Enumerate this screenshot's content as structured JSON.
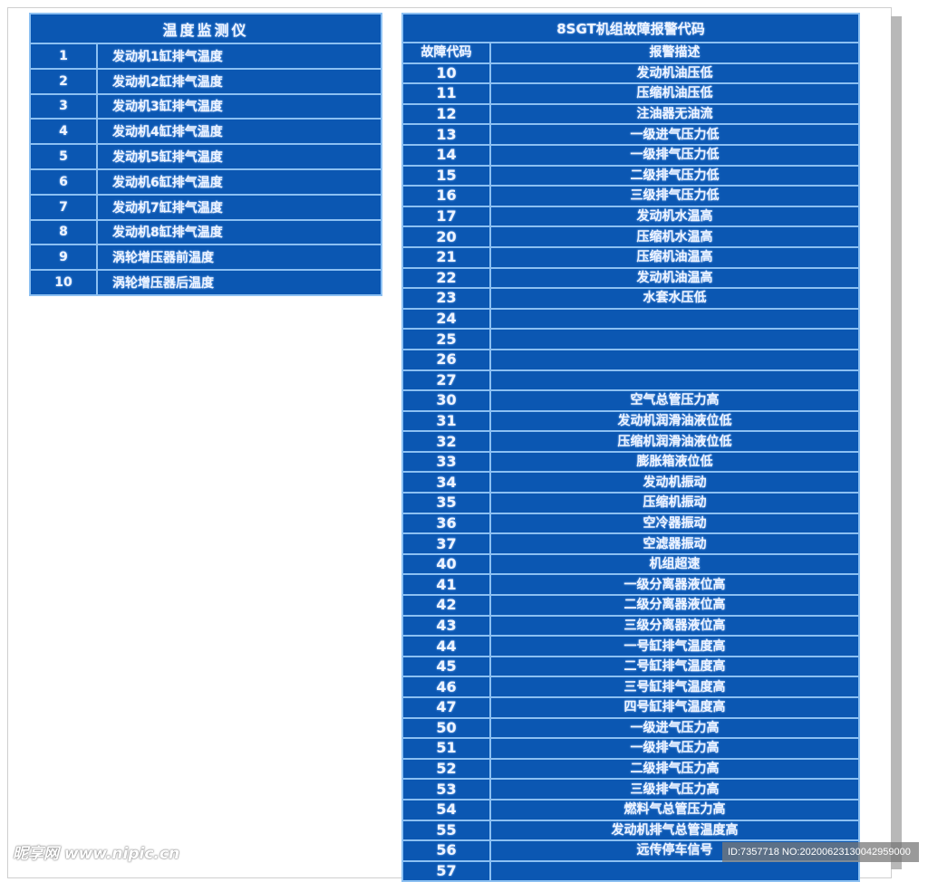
{
  "temp_table": {
    "title": "温度监测仪",
    "rows": [
      {
        "no": "1",
        "desc": "发动机1缸排气温度"
      },
      {
        "no": "2",
        "desc": "发动机2缸排气温度"
      },
      {
        "no": "3",
        "desc": "发动机3缸排气温度"
      },
      {
        "no": "4",
        "desc": "发动机4缸排气温度"
      },
      {
        "no": "5",
        "desc": "发动机5缸排气温度"
      },
      {
        "no": "6",
        "desc": "发动机6缸排气温度"
      },
      {
        "no": "7",
        "desc": "发动机7缸排气温度"
      },
      {
        "no": "8",
        "desc": "发动机8缸排气温度"
      },
      {
        "no": "9",
        "desc": "涡轮增压器前温度"
      },
      {
        "no": "10",
        "desc": "涡轮增压器后温度"
      }
    ]
  },
  "alarm_table": {
    "title": "8SGT机组故障报警代码",
    "headers": {
      "code": "故障代码",
      "desc": "报警描述"
    },
    "rows": [
      {
        "code": "10",
        "desc": "发动机油压低"
      },
      {
        "code": "11",
        "desc": "压缩机油压低"
      },
      {
        "code": "12",
        "desc": "注油器无油流"
      },
      {
        "code": "13",
        "desc": "一级进气压力低"
      },
      {
        "code": "14",
        "desc": "一级排气压力低"
      },
      {
        "code": "15",
        "desc": "二级排气压力低"
      },
      {
        "code": "16",
        "desc": "三级排气压力低"
      },
      {
        "code": "17",
        "desc": "发动机水温高"
      },
      {
        "code": "20",
        "desc": "压缩机水温高"
      },
      {
        "code": "21",
        "desc": "压缩机油温高"
      },
      {
        "code": "22",
        "desc": "发动机油温高"
      },
      {
        "code": "23",
        "desc": "水套水压低"
      },
      {
        "code": "24",
        "desc": ""
      },
      {
        "code": "25",
        "desc": ""
      },
      {
        "code": "26",
        "desc": ""
      },
      {
        "code": "27",
        "desc": ""
      },
      {
        "code": "30",
        "desc": "空气总管压力高"
      },
      {
        "code": "31",
        "desc": "发动机润滑油液位低"
      },
      {
        "code": "32",
        "desc": "压缩机润滑油液位低"
      },
      {
        "code": "33",
        "desc": "膨胀箱液位低"
      },
      {
        "code": "34",
        "desc": "发动机振动"
      },
      {
        "code": "35",
        "desc": "压缩机振动"
      },
      {
        "code": "36",
        "desc": "空冷器振动"
      },
      {
        "code": "37",
        "desc": "空滤器振动"
      },
      {
        "code": "40",
        "desc": "机组超速"
      },
      {
        "code": "41",
        "desc": "一级分离器液位高"
      },
      {
        "code": "42",
        "desc": "二级分离器液位高"
      },
      {
        "code": "43",
        "desc": "三级分离器液位高"
      },
      {
        "code": "44",
        "desc": "一号缸排气温度高"
      },
      {
        "code": "45",
        "desc": "二号缸排气温度高"
      },
      {
        "code": "46",
        "desc": "三号缸排气温度高"
      },
      {
        "code": "47",
        "desc": "四号缸排气温度高"
      },
      {
        "code": "50",
        "desc": "一级进气压力高"
      },
      {
        "code": "51",
        "desc": "一级排气压力高"
      },
      {
        "code": "52",
        "desc": "二级排气压力高"
      },
      {
        "code": "53",
        "desc": "三级排气压力高"
      },
      {
        "code": "54",
        "desc": "燃料气总管压力高"
      },
      {
        "code": "55",
        "desc": "发动机排气总管温度高"
      },
      {
        "code": "56",
        "desc": "远传停车信号"
      },
      {
        "code": "57",
        "desc": ""
      }
    ]
  },
  "watermark": {
    "site": "昵享网 www.nipic.cn",
    "id_text": "ID:7357718 NO:20200623130042959000"
  },
  "colors": {
    "table_bg": "#0b57b2",
    "grid": "#8cc0f2",
    "text": "#eef4ff"
  }
}
